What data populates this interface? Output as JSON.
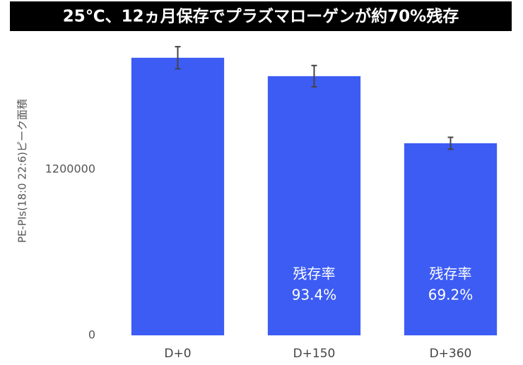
{
  "chart_data": {
    "type": "bar",
    "title": "25℃、12ヵ月保存でプラズマローゲンが約70%残存",
    "y_label": "PE-PIs(18:0 22:6)ピーク面積",
    "categories": [
      "D+0",
      "D+150",
      "D+360"
    ],
    "values": [
      2007000,
      1874000,
      1389000
    ],
    "errors": [
      80000,
      77000,
      43000
    ],
    "annotations": [
      null,
      [
        "残存率",
        "93.4%"
      ],
      [
        "残存率",
        "69.2%"
      ]
    ],
    "color": "#3d5cf4",
    "ylim": [
      0,
      2200000
    ],
    "yticks": [
      0,
      1200000
    ],
    "grid": false
  }
}
